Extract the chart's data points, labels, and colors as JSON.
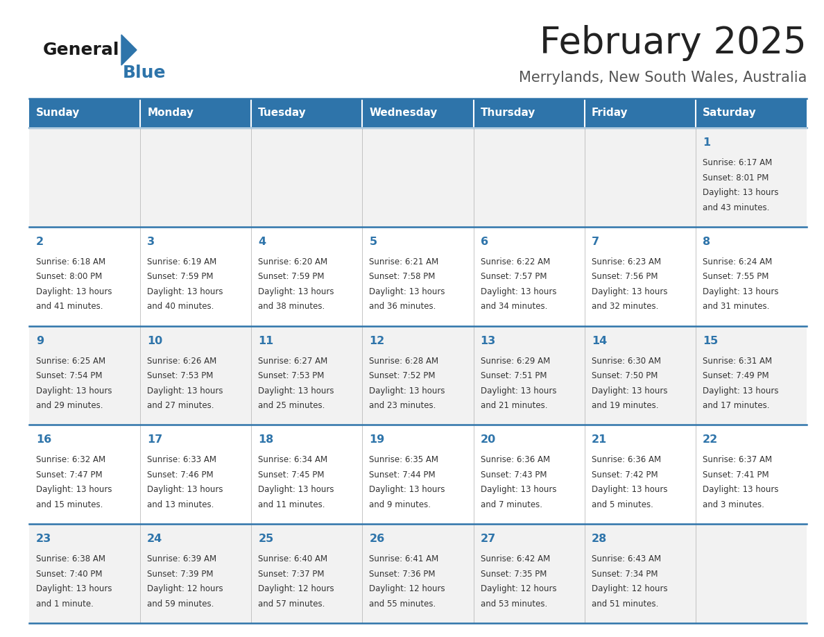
{
  "title": "February 2025",
  "subtitle": "Merrylands, New South Wales, Australia",
  "days_of_week": [
    "Sunday",
    "Monday",
    "Tuesday",
    "Wednesday",
    "Thursday",
    "Friday",
    "Saturday"
  ],
  "header_bg": "#2E74AA",
  "header_text": "#FFFFFF",
  "row_bg_odd": "#F2F2F2",
  "row_bg_even": "#FFFFFF",
  "cell_text_color": "#333333",
  "day_number_color": "#2E74AA",
  "title_color": "#222222",
  "subtitle_color": "#555555",
  "separator_color": "#2E74AA",
  "logo_general_color": "#1a1a1a",
  "logo_blue_color": "#2E74AA",
  "calendar_data": [
    [
      {
        "day": null,
        "info": null
      },
      {
        "day": null,
        "info": null
      },
      {
        "day": null,
        "info": null
      },
      {
        "day": null,
        "info": null
      },
      {
        "day": null,
        "info": null
      },
      {
        "day": null,
        "info": null
      },
      {
        "day": 1,
        "info": "Sunrise: 6:17 AM\nSunset: 8:01 PM\nDaylight: 13 hours\nand 43 minutes."
      }
    ],
    [
      {
        "day": 2,
        "info": "Sunrise: 6:18 AM\nSunset: 8:00 PM\nDaylight: 13 hours\nand 41 minutes."
      },
      {
        "day": 3,
        "info": "Sunrise: 6:19 AM\nSunset: 7:59 PM\nDaylight: 13 hours\nand 40 minutes."
      },
      {
        "day": 4,
        "info": "Sunrise: 6:20 AM\nSunset: 7:59 PM\nDaylight: 13 hours\nand 38 minutes."
      },
      {
        "day": 5,
        "info": "Sunrise: 6:21 AM\nSunset: 7:58 PM\nDaylight: 13 hours\nand 36 minutes."
      },
      {
        "day": 6,
        "info": "Sunrise: 6:22 AM\nSunset: 7:57 PM\nDaylight: 13 hours\nand 34 minutes."
      },
      {
        "day": 7,
        "info": "Sunrise: 6:23 AM\nSunset: 7:56 PM\nDaylight: 13 hours\nand 32 minutes."
      },
      {
        "day": 8,
        "info": "Sunrise: 6:24 AM\nSunset: 7:55 PM\nDaylight: 13 hours\nand 31 minutes."
      }
    ],
    [
      {
        "day": 9,
        "info": "Sunrise: 6:25 AM\nSunset: 7:54 PM\nDaylight: 13 hours\nand 29 minutes."
      },
      {
        "day": 10,
        "info": "Sunrise: 6:26 AM\nSunset: 7:53 PM\nDaylight: 13 hours\nand 27 minutes."
      },
      {
        "day": 11,
        "info": "Sunrise: 6:27 AM\nSunset: 7:53 PM\nDaylight: 13 hours\nand 25 minutes."
      },
      {
        "day": 12,
        "info": "Sunrise: 6:28 AM\nSunset: 7:52 PM\nDaylight: 13 hours\nand 23 minutes."
      },
      {
        "day": 13,
        "info": "Sunrise: 6:29 AM\nSunset: 7:51 PM\nDaylight: 13 hours\nand 21 minutes."
      },
      {
        "day": 14,
        "info": "Sunrise: 6:30 AM\nSunset: 7:50 PM\nDaylight: 13 hours\nand 19 minutes."
      },
      {
        "day": 15,
        "info": "Sunrise: 6:31 AM\nSunset: 7:49 PM\nDaylight: 13 hours\nand 17 minutes."
      }
    ],
    [
      {
        "day": 16,
        "info": "Sunrise: 6:32 AM\nSunset: 7:47 PM\nDaylight: 13 hours\nand 15 minutes."
      },
      {
        "day": 17,
        "info": "Sunrise: 6:33 AM\nSunset: 7:46 PM\nDaylight: 13 hours\nand 13 minutes."
      },
      {
        "day": 18,
        "info": "Sunrise: 6:34 AM\nSunset: 7:45 PM\nDaylight: 13 hours\nand 11 minutes."
      },
      {
        "day": 19,
        "info": "Sunrise: 6:35 AM\nSunset: 7:44 PM\nDaylight: 13 hours\nand 9 minutes."
      },
      {
        "day": 20,
        "info": "Sunrise: 6:36 AM\nSunset: 7:43 PM\nDaylight: 13 hours\nand 7 minutes."
      },
      {
        "day": 21,
        "info": "Sunrise: 6:36 AM\nSunset: 7:42 PM\nDaylight: 13 hours\nand 5 minutes."
      },
      {
        "day": 22,
        "info": "Sunrise: 6:37 AM\nSunset: 7:41 PM\nDaylight: 13 hours\nand 3 minutes."
      }
    ],
    [
      {
        "day": 23,
        "info": "Sunrise: 6:38 AM\nSunset: 7:40 PM\nDaylight: 13 hours\nand 1 minute."
      },
      {
        "day": 24,
        "info": "Sunrise: 6:39 AM\nSunset: 7:39 PM\nDaylight: 12 hours\nand 59 minutes."
      },
      {
        "day": 25,
        "info": "Sunrise: 6:40 AM\nSunset: 7:37 PM\nDaylight: 12 hours\nand 57 minutes."
      },
      {
        "day": 26,
        "info": "Sunrise: 6:41 AM\nSunset: 7:36 PM\nDaylight: 12 hours\nand 55 minutes."
      },
      {
        "day": 27,
        "info": "Sunrise: 6:42 AM\nSunset: 7:35 PM\nDaylight: 12 hours\nand 53 minutes."
      },
      {
        "day": 28,
        "info": "Sunrise: 6:43 AM\nSunset: 7:34 PM\nDaylight: 12 hours\nand 51 minutes."
      },
      {
        "day": null,
        "info": null
      }
    ]
  ],
  "figsize": [
    11.88,
    9.18
  ],
  "dpi": 100
}
